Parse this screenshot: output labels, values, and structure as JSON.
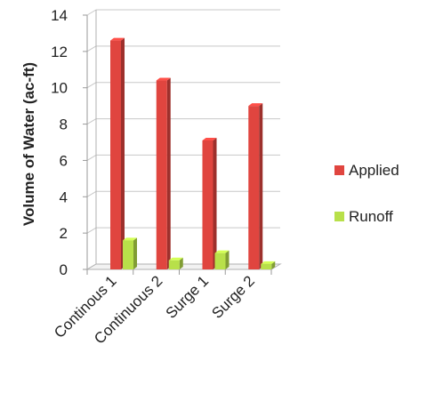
{
  "chart_data": {
    "type": "bar",
    "title": "",
    "xlabel": "",
    "ylabel": "Volume of Water (ac-ft)",
    "ylim": [
      0,
      14
    ],
    "yticks": [
      0,
      2,
      4,
      6,
      8,
      10,
      12,
      14
    ],
    "categories": [
      "Continous 1",
      "Continuous 2",
      "Surge 1",
      "Surge 2"
    ],
    "series": [
      {
        "name": "Applied",
        "values": [
          12.6,
          10.4,
          7.1,
          9.0
        ],
        "color": "#e0453f"
      },
      {
        "name": "Runoff",
        "values": [
          1.6,
          0.5,
          0.9,
          0.3
        ],
        "color": "#b8e04a"
      }
    ],
    "grid": true,
    "legend_position": "right",
    "style": "3d-clustered-column"
  }
}
